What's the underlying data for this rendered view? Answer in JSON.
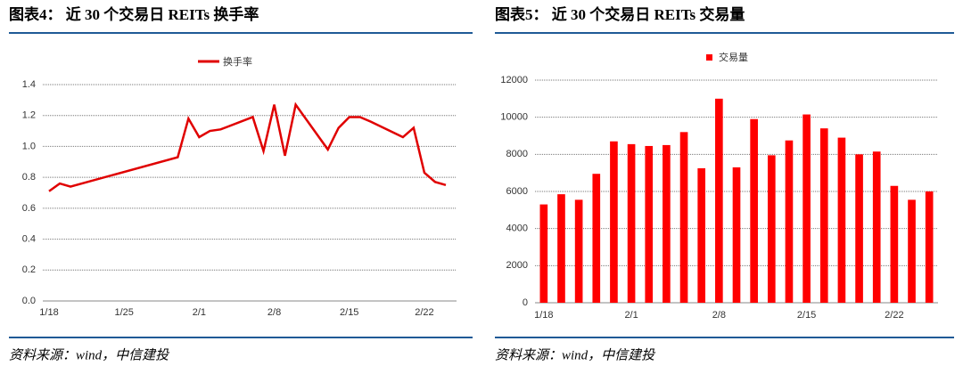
{
  "chart_data": [
    {
      "type": "line",
      "title": "图表4： 近 30 个交易日 REITs 换手率",
      "source": "资料来源：wind，中信建投",
      "x": [
        "1/18",
        "1/19",
        "1/20",
        "1/30",
        "1/31",
        "2/1",
        "2/2",
        "2/3",
        "2/6",
        "2/7",
        "2/8",
        "2/9",
        "2/10",
        "2/13",
        "2/14",
        "2/15",
        "2/16",
        "2/17",
        "2/20",
        "2/21",
        "2/22",
        "2/23",
        "2/24"
      ],
      "series": [
        {
          "name": "换手率",
          "color": "#e00000",
          "values": [
            0.71,
            0.76,
            0.74,
            0.93,
            1.18,
            1.06,
            1.1,
            1.11,
            1.19,
            0.97,
            1.27,
            0.94,
            1.27,
            0.98,
            1.12,
            1.19,
            1.19,
            1.16,
            1.06,
            1.12,
            0.83,
            0.77,
            0.75
          ]
        }
      ],
      "xlim": [
        "1/18",
        "2/25"
      ],
      "xticks": [
        "1/18",
        "1/25",
        "2/1",
        "2/8",
        "2/15",
        "2/22"
      ],
      "ylim": [
        0,
        1.4
      ],
      "yticks": [
        {
          "value": 0,
          "label": "0.0"
        },
        0.2,
        0.4,
        0.6,
        0.8,
        {
          "value": 1,
          "label": "1.0"
        },
        1.2,
        1.4
      ],
      "grid": true,
      "legend": "top"
    },
    {
      "type": "bar",
      "title": "图表5： 近 30 个交易日 REITs 交易量",
      "source": "资料来源：wind，中信建投",
      "categories": [
        "1/18",
        null,
        null,
        null,
        null,
        "2/1",
        null,
        null,
        null,
        null,
        "2/8",
        null,
        null,
        null,
        null,
        "2/15",
        null,
        null,
        null,
        null,
        "2/22",
        null,
        null
      ],
      "series": [
        {
          "name": "交易量",
          "color": "#ff0000",
          "values": [
            5300,
            5850,
            5550,
            6950,
            8700,
            8550,
            8450,
            8500,
            9200,
            7250,
            11000,
            7300,
            9900,
            7950,
            8750,
            10150,
            9400,
            8900,
            8000,
            8150,
            6300,
            5550,
            6000
          ]
        }
      ],
      "ylim": [
        0,
        12000
      ],
      "yticks": [
        0,
        2000,
        4000,
        6000,
        8000,
        10000,
        12000
      ],
      "grid": true,
      "legend": "top"
    }
  ]
}
